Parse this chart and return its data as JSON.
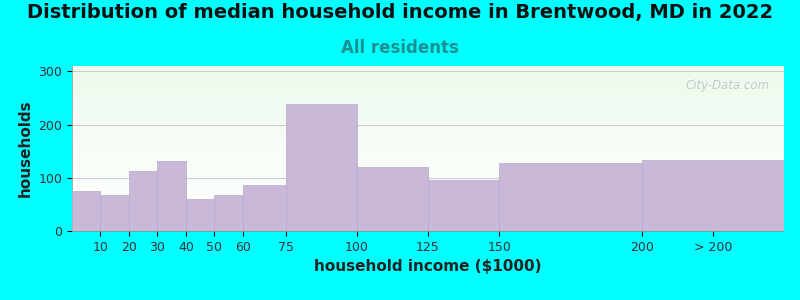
{
  "title": "Distribution of median household income in Brentwood, MD in 2022",
  "subtitle": "All residents",
  "xlabel": "household income ($1000)",
  "ylabel": "households",
  "background_color": "#00FFFF",
  "bar_color": "#c9b8d8",
  "bar_edge_color": "#b8a8cc",
  "yticks": [
    0,
    100,
    200,
    300
  ],
  "ylim": [
    0,
    310
  ],
  "categories": [
    "10",
    "20",
    "30",
    "40",
    "50",
    "60",
    "75",
    "100",
    "125",
    "150",
    "200",
    "> 200"
  ],
  "values": [
    75,
    67,
    113,
    132,
    60,
    68,
    87,
    238,
    120,
    95,
    128,
    133
  ],
  "bin_lefts": [
    0,
    10,
    20,
    30,
    40,
    50,
    60,
    75,
    100,
    125,
    150,
    200
  ],
  "bin_rights": [
    10,
    20,
    30,
    40,
    50,
    60,
    75,
    100,
    125,
    150,
    200,
    250
  ],
  "xtick_positions": [
    10,
    20,
    30,
    40,
    50,
    60,
    75,
    100,
    125,
    150,
    200,
    225
  ],
  "xtick_labels": [
    "10",
    "20",
    "30",
    "40",
    "50",
    "60",
    "75",
    "100",
    "125",
    "150",
    "200",
    "> 200"
  ],
  "title_fontsize": 14,
  "subtitle_fontsize": 12,
  "axis_label_fontsize": 11,
  "tick_fontsize": 9,
  "watermark": "City-Data.com"
}
